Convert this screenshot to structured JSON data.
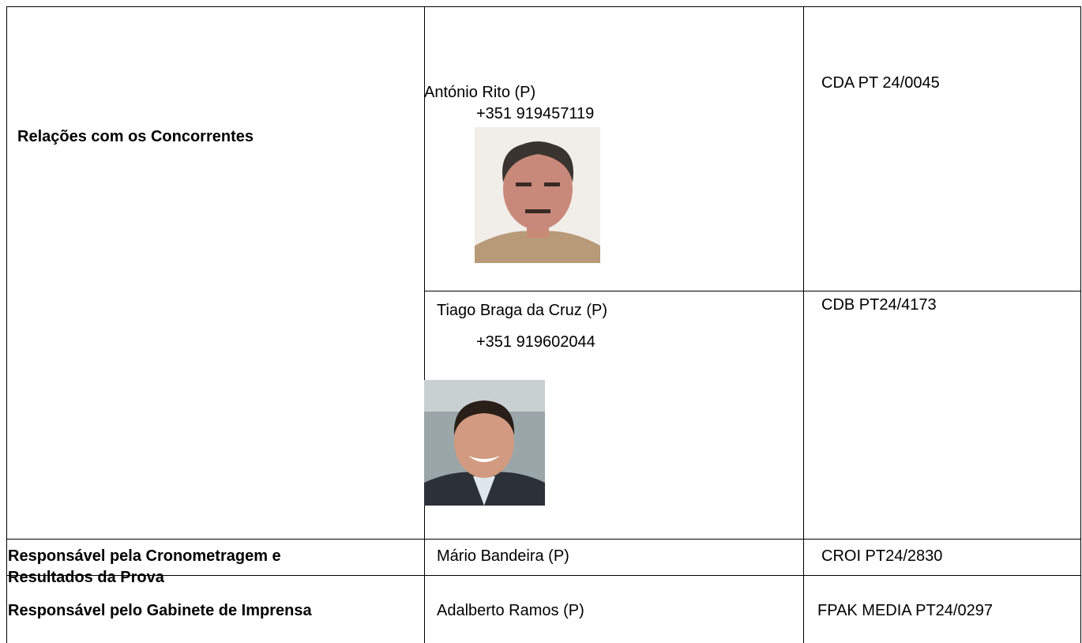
{
  "table": {
    "rows": [
      {
        "role": [
          "Relações com os Concorrentes"
        ],
        "people": [
          {
            "name": "António Rito (P)",
            "phone": "+351 919457119",
            "license": "CDA PT 24/0045"
          },
          {
            "name": "Tiago Braga da Cruz (P)",
            "phone": "+351 919602044",
            "license": "CDB PT24/4173"
          }
        ]
      },
      {
        "role": [
          "Responsável pela Cronometragem e",
          "Resultados da Prova"
        ],
        "people": [
          {
            "name": "Mário Bandeira (P)",
            "license": "CROI PT24/2830"
          }
        ]
      },
      {
        "role": [
          "Responsável pelo Gabinete de Imprensa"
        ],
        "people": [
          {
            "name": "Adalberto Ramos (P)",
            "license": "FPAK MEDIA PT24/0297"
          }
        ]
      }
    ]
  }
}
